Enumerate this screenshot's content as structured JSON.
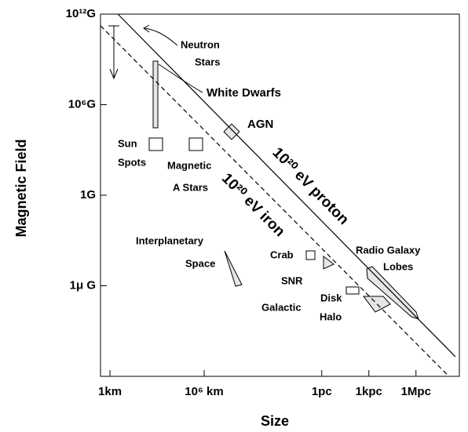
{
  "chart_data": {
    "type": "line",
    "xlabel": "Size",
    "ylabel": "Magnetic Field",
    "xscale": "log",
    "yscale": "log",
    "xlim": [
      0.25,
      1.8e+22
    ],
    "ylim": [
      1e-12,
      1000000000000.0
    ],
    "xticks": [
      {
        "value": 1,
        "label": "1km"
      },
      {
        "value": 1000000.0,
        "label": "10⁶ km"
      },
      {
        "value": 31000000000000.0,
        "label": "1pc"
      },
      {
        "value": 3.1e+16,
        "label": "1kpc"
      },
      {
        "value": 3.1e+19,
        "label": "1Mpc"
      }
    ],
    "yticks": [
      {
        "value": 1000000000000.0,
        "label": "10¹²G"
      },
      {
        "value": 1000000.0,
        "label": "10⁶G"
      },
      {
        "value": 1,
        "label": "1G"
      },
      {
        "value": 1e-06,
        "label": "1μ G"
      }
    ],
    "series": [
      {
        "name": "10²⁰ eV proton",
        "color": "#000000",
        "dashed": false,
        "x": [
          3.2,
          1e+22
        ],
        "values": [
          1000000000000.0,
          2e-11
        ]
      },
      {
        "name": "10²⁰ eV iron",
        "color": "#000000",
        "dashed": true,
        "x": [
          0.25,
          3e+21
        ],
        "values": [
          170000000000.0,
          1.3e-12
        ]
      }
    ],
    "annotations": [
      "Neutron",
      "Stars",
      "White Dwarfs",
      "AGN",
      "Sun",
      "Spots",
      "Magnetic",
      "A Stars",
      "Interplanetary",
      "Space",
      "Crab",
      "SNR",
      "Radio Galaxy",
      "Lobes",
      "Disk",
      "Galactic",
      "Halo"
    ]
  }
}
